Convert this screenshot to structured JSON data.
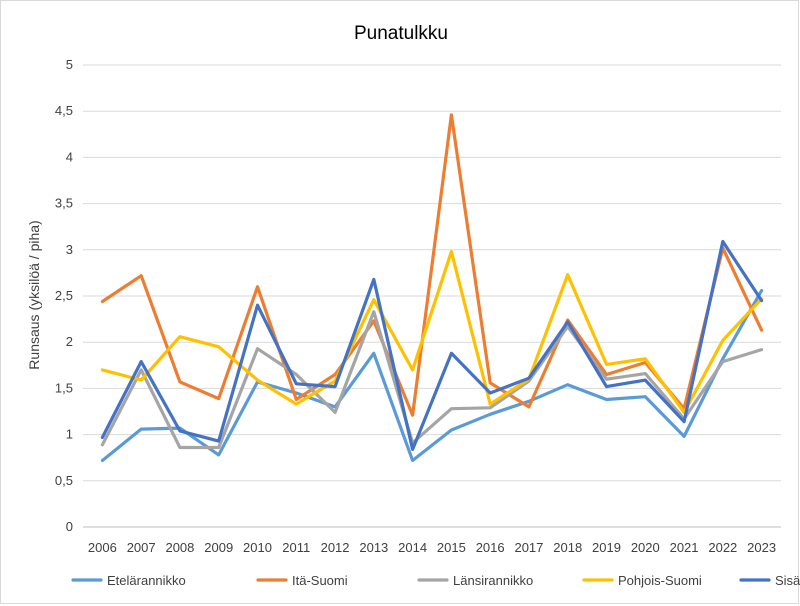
{
  "chart_data": {
    "type": "line",
    "title": "Punatulkku",
    "xlabel": "",
    "ylabel": "Runsaus (yksilöä / piha)",
    "categories": [
      "2006",
      "2007",
      "2008",
      "2009",
      "2010",
      "2011",
      "2012",
      "2013",
      "2014",
      "2015",
      "2016",
      "2017",
      "2018",
      "2019",
      "2020",
      "2021",
      "2022",
      "2023"
    ],
    "yticks": [
      {
        "value": 0,
        "label": "0"
      },
      {
        "value": 0.5,
        "label": "0,5"
      },
      {
        "value": 1,
        "label": "1"
      },
      {
        "value": 1.5,
        "label": "1,5"
      },
      {
        "value": 2,
        "label": "2"
      },
      {
        "value": 2.5,
        "label": "2,5"
      },
      {
        "value": 3,
        "label": "3"
      },
      {
        "value": 3.5,
        "label": "3,5"
      },
      {
        "value": 4,
        "label": "4"
      },
      {
        "value": 4.5,
        "label": "4,5"
      },
      {
        "value": 5,
        "label": "5"
      }
    ],
    "ylim": [
      0,
      5
    ],
    "grid": "horizontal",
    "legend_position": "bottom",
    "series": [
      {
        "name": "Etelärannikko",
        "color": "#5b9bd5",
        "values": [
          0.72,
          1.06,
          1.07,
          0.78,
          1.57,
          1.45,
          1.3,
          1.88,
          0.72,
          1.05,
          1.22,
          1.36,
          1.54,
          1.38,
          1.41,
          0.98,
          1.82,
          2.56
        ]
      },
      {
        "name": "Itä-Suomi",
        "color": "#ed7d31",
        "values": [
          2.44,
          2.72,
          1.57,
          1.39,
          2.6,
          1.38,
          1.65,
          2.23,
          1.21,
          4.46,
          1.56,
          1.3,
          2.24,
          1.65,
          1.78,
          1.28,
          3.02,
          2.13
        ]
      },
      {
        "name": "Länsirannikko",
        "color": "#a5a5a5",
        "values": [
          0.89,
          1.7,
          0.86,
          0.86,
          1.93,
          1.65,
          1.24,
          2.33,
          0.91,
          1.28,
          1.29,
          1.58,
          2.17,
          1.6,
          1.66,
          1.17,
          1.79,
          1.92
        ]
      },
      {
        "name": "Pohjois-Suomi",
        "color": "#ffc000",
        "values": [
          1.7,
          1.59,
          2.06,
          1.95,
          1.59,
          1.33,
          1.58,
          2.46,
          1.7,
          2.98,
          1.33,
          1.6,
          2.73,
          1.76,
          1.82,
          1.24,
          2.02,
          2.47
        ]
      },
      {
        "name": "Sisä-Suomi",
        "color": "#4472c4",
        "values": [
          0.97,
          1.79,
          1.04,
          0.93,
          2.4,
          1.55,
          1.52,
          2.68,
          0.84,
          1.88,
          1.45,
          1.61,
          2.22,
          1.52,
          1.59,
          1.14,
          3.09,
          2.45
        ]
      }
    ]
  }
}
